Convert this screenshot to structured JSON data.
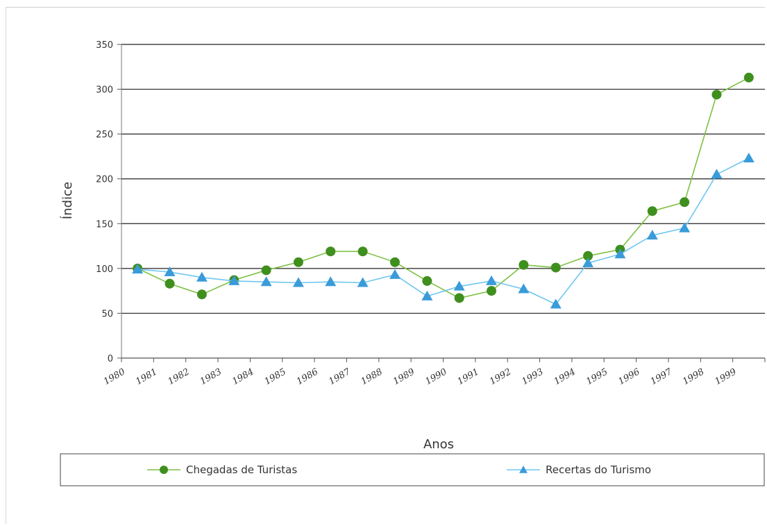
{
  "chart_data": {
    "type": "line",
    "title": "",
    "xlabel": "Anos",
    "ylabel": "Índice",
    "ylim": [
      0,
      350
    ],
    "yticks": [
      0,
      50,
      100,
      150,
      200,
      250,
      300,
      350
    ],
    "grid": "horizontal",
    "legend_position": "bottom",
    "categories": [
      "1980",
      "1981",
      "1982",
      "1983",
      "1984",
      "1985",
      "1986",
      "1987",
      "1988",
      "1989",
      "1990",
      "1991",
      "1992",
      "1993",
      "1994",
      "1995",
      "1996",
      "1997",
      "1998",
      "1999"
    ],
    "series": [
      {
        "name": "Chegadas de Turistas",
        "color": "#7dc142",
        "marker": "circle",
        "marker_color": "#3f8f1f",
        "values": [
          100,
          83,
          71,
          87,
          98,
          107,
          119,
          119,
          107,
          86,
          67,
          75,
          104,
          101,
          114,
          121,
          164,
          174,
          294,
          313
        ]
      },
      {
        "name": "Recertas do Turismo",
        "color": "#6ec6f0",
        "marker": "triangle",
        "marker_color": "#3a9bd9",
        "values": [
          99,
          96,
          90,
          86,
          85,
          84,
          85,
          84,
          93,
          69,
          80,
          86,
          77,
          60,
          106,
          116,
          137,
          145,
          205,
          223
        ]
      }
    ]
  }
}
